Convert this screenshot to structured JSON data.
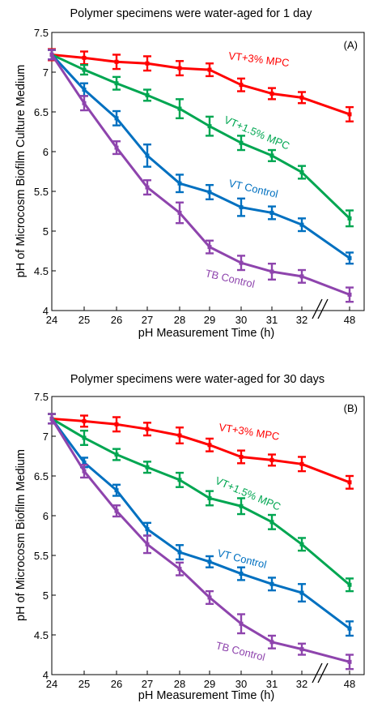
{
  "chart_data": [
    {
      "type": "line",
      "title": "Polymer specimens were water-aged for 1 day",
      "panel_label": "(A)",
      "xlabel": "pH Measurement Time (h)",
      "ylabel": "pH of Microcosm Biofilm Culture Medium",
      "ylim": [
        4,
        7.5
      ],
      "yticks": [
        "4",
        "4.5",
        "5",
        "5.5",
        "6",
        "6.5",
        "7",
        "7.5"
      ],
      "categories": [
        "24",
        "25",
        "26",
        "27",
        "28",
        "29",
        "30",
        "31",
        "32",
        "48"
      ],
      "axis_break": "between 32 and 48",
      "grid": false,
      "series": [
        {
          "name": "VT+3% MPC",
          "color": "#ff0000",
          "values": [
            7.22,
            7.18,
            7.13,
            7.11,
            7.05,
            7.03,
            6.84,
            6.73,
            6.68,
            6.47
          ],
          "errors": [
            0.07,
            0.08,
            0.09,
            0.09,
            0.09,
            0.08,
            0.08,
            0.07,
            0.07,
            0.09
          ]
        },
        {
          "name": "VT+1.5% MPC",
          "color": "#00a651",
          "values": [
            7.22,
            7.03,
            6.86,
            6.71,
            6.54,
            6.32,
            6.11,
            5.95,
            5.74,
            5.16
          ],
          "errors": [
            0.06,
            0.06,
            0.08,
            0.07,
            0.12,
            0.12,
            0.09,
            0.07,
            0.08,
            0.1
          ]
        },
        {
          "name": "VT Control",
          "color": "#0070c0",
          "values": [
            7.22,
            6.78,
            6.42,
            5.95,
            5.6,
            5.49,
            5.3,
            5.23,
            5.08,
            4.66
          ],
          "errors": [
            0.06,
            0.08,
            0.09,
            0.14,
            0.11,
            0.09,
            0.11,
            0.08,
            0.08,
            0.07
          ]
        },
        {
          "name": "TB Control",
          "color": "#8e44ad",
          "values": [
            7.22,
            6.61,
            6.05,
            5.55,
            5.23,
            4.8,
            4.6,
            4.49,
            4.43,
            4.2
          ],
          "errors": [
            0.06,
            0.09,
            0.08,
            0.09,
            0.13,
            0.08,
            0.09,
            0.1,
            0.08,
            0.09
          ]
        }
      ]
    },
    {
      "type": "line",
      "title": "Polymer specimens were water-aged for 30 days",
      "panel_label": "(B)",
      "xlabel": "pH Measurement Time (h)",
      "ylabel": "pH of Microcosm Biofilm Medium",
      "ylim": [
        4,
        7.5
      ],
      "yticks": [
        "4",
        "4.5",
        "5",
        "5.5",
        "6",
        "6.5",
        "7",
        "7.5"
      ],
      "categories": [
        "24",
        "25",
        "26",
        "27",
        "28",
        "29",
        "30",
        "31",
        "32",
        "48"
      ],
      "axis_break": "between 32 and 48",
      "grid": false,
      "series": [
        {
          "name": "VT+3% MPC",
          "color": "#ff0000",
          "values": [
            7.22,
            7.19,
            7.15,
            7.09,
            7.01,
            6.89,
            6.74,
            6.7,
            6.65,
            6.42
          ],
          "errors": [
            0.06,
            0.07,
            0.09,
            0.08,
            0.1,
            0.08,
            0.08,
            0.07,
            0.09,
            0.08
          ]
        },
        {
          "name": "VT+1.5% MPC",
          "color": "#00a651",
          "values": [
            7.22,
            6.98,
            6.77,
            6.61,
            6.45,
            6.22,
            6.12,
            5.92,
            5.64,
            5.13
          ],
          "errors": [
            0.06,
            0.09,
            0.07,
            0.07,
            0.09,
            0.09,
            0.1,
            0.09,
            0.08,
            0.08
          ]
        },
        {
          "name": "VT Control",
          "color": "#0070c0",
          "values": [
            7.22,
            6.67,
            6.32,
            5.83,
            5.54,
            5.42,
            5.27,
            5.14,
            5.03,
            4.58
          ],
          "errors": [
            0.06,
            0.06,
            0.07,
            0.08,
            0.09,
            0.07,
            0.08,
            0.08,
            0.11,
            0.09
          ]
        },
        {
          "name": "TB Control",
          "color": "#8e44ad",
          "values": [
            7.22,
            6.56,
            6.06,
            5.64,
            5.33,
            4.97,
            4.64,
            4.41,
            4.32,
            4.16
          ],
          "errors": [
            0.06,
            0.08,
            0.07,
            0.11,
            0.08,
            0.08,
            0.12,
            0.08,
            0.07,
            0.09
          ]
        }
      ]
    }
  ]
}
